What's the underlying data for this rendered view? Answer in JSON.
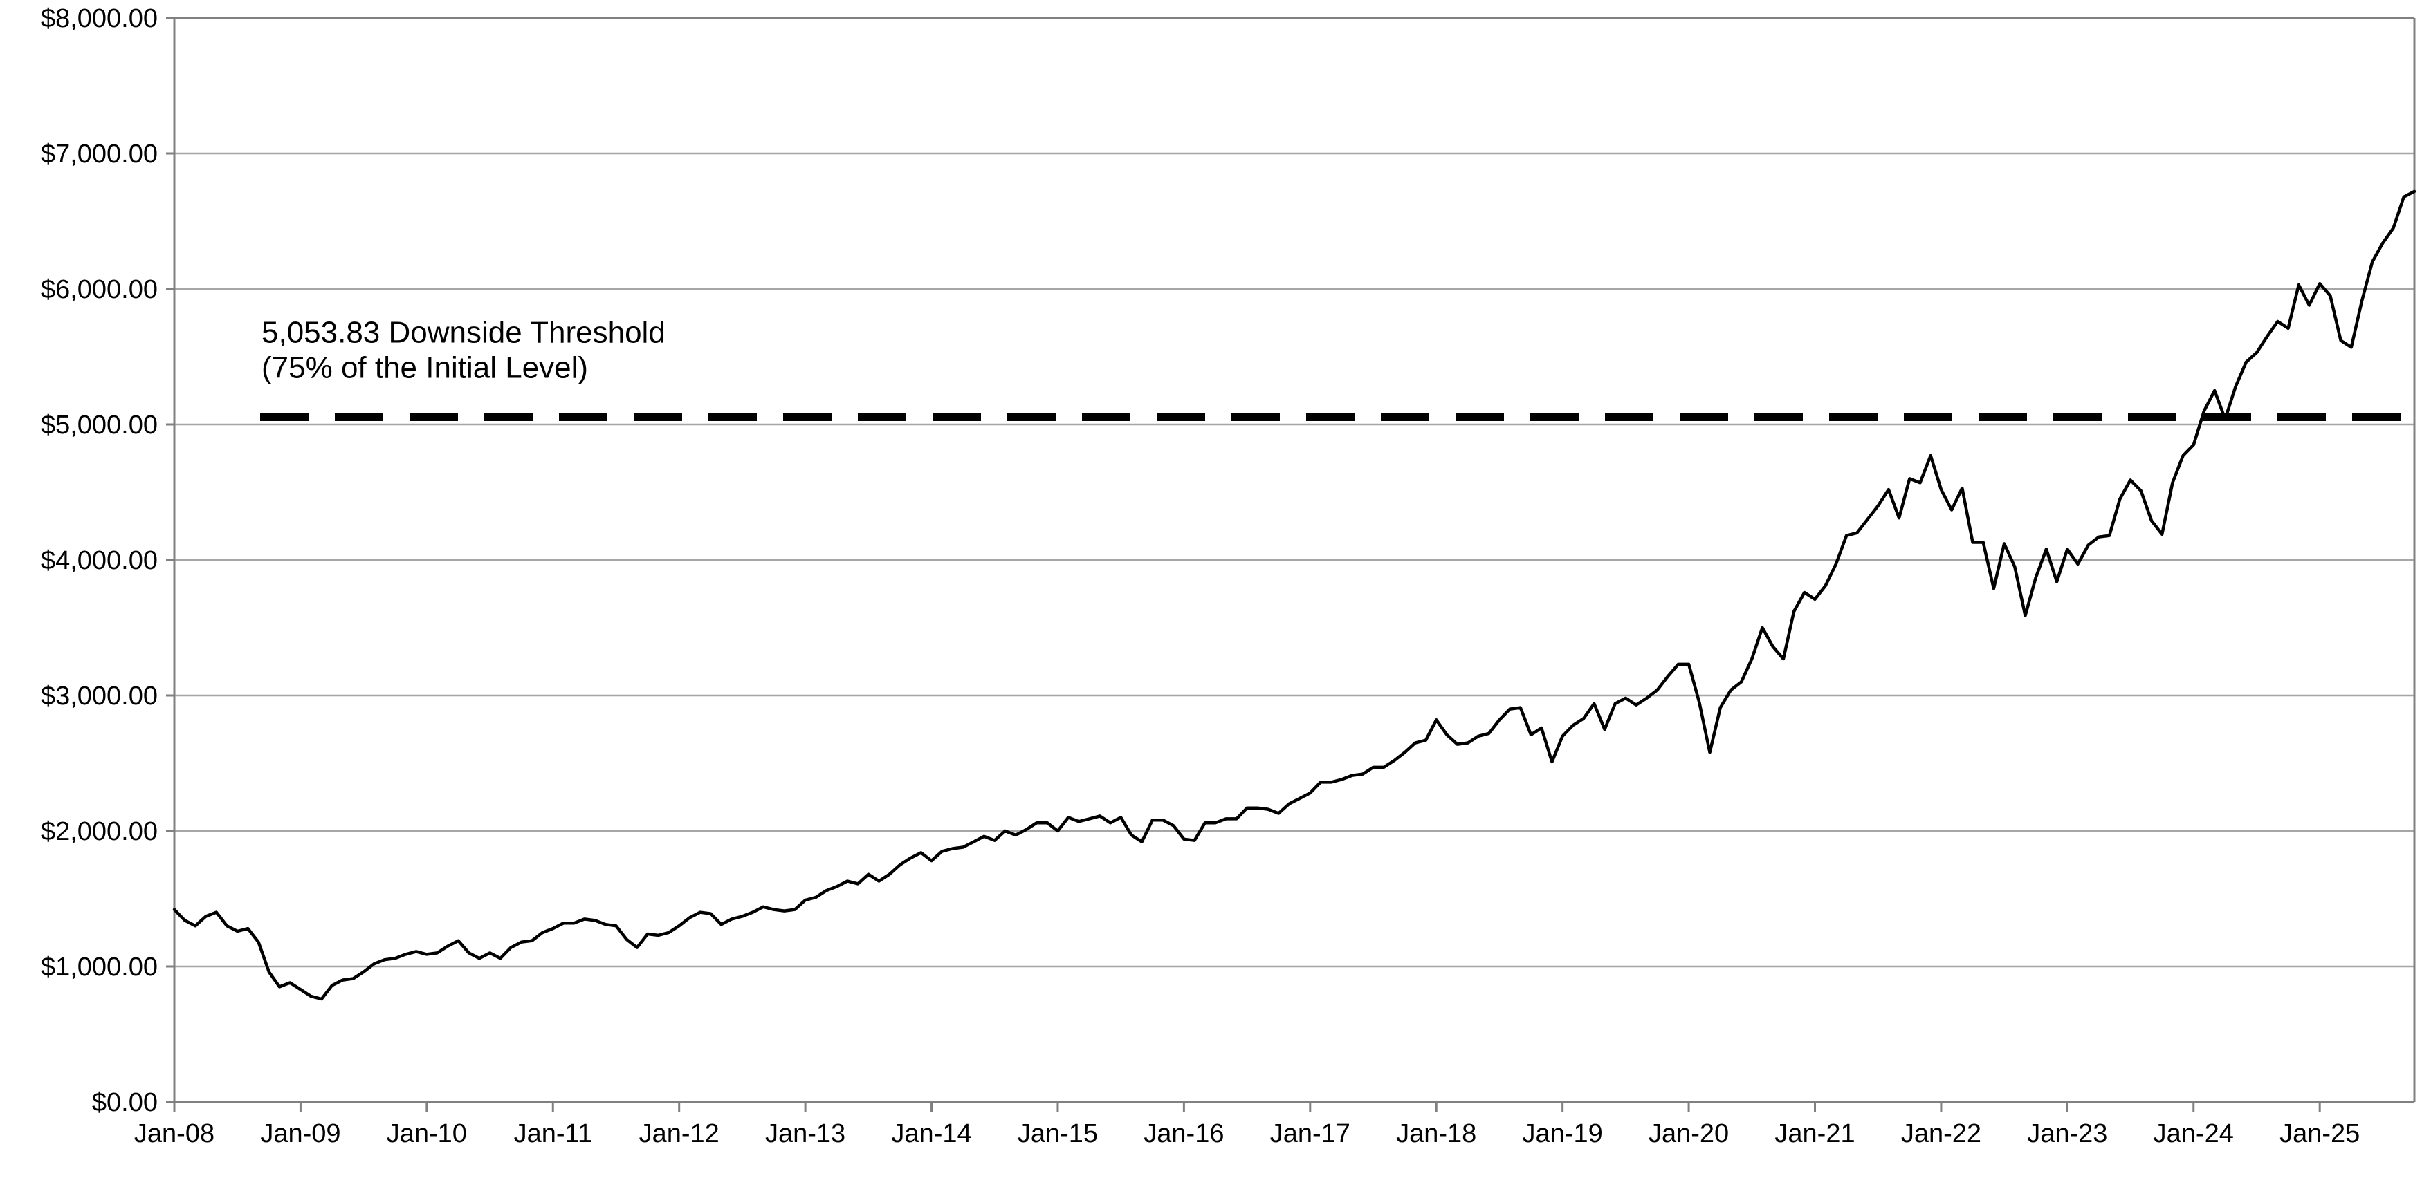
{
  "chart_data": {
    "type": "line",
    "title": "",
    "xlabel": "",
    "ylabel": "",
    "ylim": [
      0,
      8000
    ],
    "xlim": [
      "2008-01",
      "2025-10"
    ],
    "grid": "horizontal",
    "y_ticks": [
      {
        "value": 0,
        "label": "$0.00"
      },
      {
        "value": 1000,
        "label": "$1,000.00"
      },
      {
        "value": 2000,
        "label": "$2,000.00"
      },
      {
        "value": 3000,
        "label": "$3,000.00"
      },
      {
        "value": 4000,
        "label": "$4,000.00"
      },
      {
        "value": 5000,
        "label": "$5,000.00"
      },
      {
        "value": 6000,
        "label": "$6,000.00"
      },
      {
        "value": 7000,
        "label": "$7,000.00"
      },
      {
        "value": 8000,
        "label": "$8,000.00"
      }
    ],
    "x_ticks": [
      {
        "value": "2008-01",
        "label": "Jan-08"
      },
      {
        "value": "2009-01",
        "label": "Jan-09"
      },
      {
        "value": "2010-01",
        "label": "Jan-10"
      },
      {
        "value": "2011-01",
        "label": "Jan-11"
      },
      {
        "value": "2012-01",
        "label": "Jan-12"
      },
      {
        "value": "2013-01",
        "label": "Jan-13"
      },
      {
        "value": "2014-01",
        "label": "Jan-14"
      },
      {
        "value": "2015-01",
        "label": "Jan-15"
      },
      {
        "value": "2016-01",
        "label": "Jan-16"
      },
      {
        "value": "2017-01",
        "label": "Jan-17"
      },
      {
        "value": "2018-01",
        "label": "Jan-18"
      },
      {
        "value": "2019-01",
        "label": "Jan-19"
      },
      {
        "value": "2020-01",
        "label": "Jan-20"
      },
      {
        "value": "2021-01",
        "label": "Jan-21"
      },
      {
        "value": "2022-01",
        "label": "Jan-22"
      },
      {
        "value": "2023-01",
        "label": "Jan-23"
      },
      {
        "value": "2024-01",
        "label": "Jan-24"
      },
      {
        "value": "2025-01",
        "label": "Jan-25"
      }
    ],
    "threshold": {
      "value": 5053.83,
      "label_line1": "5,053.83 Downside Threshold",
      "label_line2": "(75% of the Initial Level)"
    },
    "series": [
      {
        "color": "#000000",
        "x": [
          "2008-01",
          "2008-02",
          "2008-03",
          "2008-04",
          "2008-05",
          "2008-06",
          "2008-07",
          "2008-08",
          "2008-09",
          "2008-10",
          "2008-11",
          "2008-12",
          "2009-01",
          "2009-02",
          "2009-03",
          "2009-04",
          "2009-05",
          "2009-06",
          "2009-07",
          "2009-08",
          "2009-09",
          "2009-10",
          "2009-11",
          "2009-12",
          "2010-01",
          "2010-02",
          "2010-03",
          "2010-04",
          "2010-05",
          "2010-06",
          "2010-07",
          "2010-08",
          "2010-09",
          "2010-10",
          "2010-11",
          "2010-12",
          "2011-01",
          "2011-02",
          "2011-03",
          "2011-04",
          "2011-05",
          "2011-06",
          "2011-07",
          "2011-08",
          "2011-09",
          "2011-10",
          "2011-11",
          "2011-12",
          "2012-01",
          "2012-02",
          "2012-03",
          "2012-04",
          "2012-05",
          "2012-06",
          "2012-07",
          "2012-08",
          "2012-09",
          "2012-10",
          "2012-11",
          "2012-12",
          "2013-01",
          "2013-02",
          "2013-03",
          "2013-04",
          "2013-05",
          "2013-06",
          "2013-07",
          "2013-08",
          "2013-09",
          "2013-10",
          "2013-11",
          "2013-12",
          "2014-01",
          "2014-02",
          "2014-03",
          "2014-04",
          "2014-05",
          "2014-06",
          "2014-07",
          "2014-08",
          "2014-09",
          "2014-10",
          "2014-11",
          "2014-12",
          "2015-01",
          "2015-02",
          "2015-03",
          "2015-04",
          "2015-05",
          "2015-06",
          "2015-07",
          "2015-08",
          "2015-09",
          "2015-10",
          "2015-11",
          "2015-12",
          "2016-01",
          "2016-02",
          "2016-03",
          "2016-04",
          "2016-05",
          "2016-06",
          "2016-07",
          "2016-08",
          "2016-09",
          "2016-10",
          "2016-11",
          "2016-12",
          "2017-01",
          "2017-02",
          "2017-03",
          "2017-04",
          "2017-05",
          "2017-06",
          "2017-07",
          "2017-08",
          "2017-09",
          "2017-10",
          "2017-11",
          "2017-12",
          "2018-01",
          "2018-02",
          "2018-03",
          "2018-04",
          "2018-05",
          "2018-06",
          "2018-07",
          "2018-08",
          "2018-09",
          "2018-10",
          "2018-11",
          "2018-12",
          "2019-01",
          "2019-02",
          "2019-03",
          "2019-04",
          "2019-05",
          "2019-06",
          "2019-07",
          "2019-08",
          "2019-09",
          "2019-10",
          "2019-11",
          "2019-12",
          "2020-01",
          "2020-02",
          "2020-03",
          "2020-04",
          "2020-05",
          "2020-06",
          "2020-07",
          "2020-08",
          "2020-09",
          "2020-10",
          "2020-11",
          "2020-12",
          "2021-01",
          "2021-02",
          "2021-03",
          "2021-04",
          "2021-05",
          "2021-06",
          "2021-07",
          "2021-08",
          "2021-09",
          "2021-10",
          "2021-11",
          "2021-12",
          "2022-01",
          "2022-02",
          "2022-03",
          "2022-04",
          "2022-05",
          "2022-06",
          "2022-07",
          "2022-08",
          "2022-09",
          "2022-10",
          "2022-11",
          "2022-12",
          "2023-01",
          "2023-02",
          "2023-03",
          "2023-04",
          "2023-05",
          "2023-06",
          "2023-07",
          "2023-08",
          "2023-09",
          "2023-10",
          "2023-11",
          "2023-12",
          "2024-01",
          "2024-02",
          "2024-03",
          "2024-04",
          "2024-05",
          "2024-06",
          "2024-07",
          "2024-08",
          "2024-09",
          "2024-10",
          "2024-11",
          "2024-12",
          "2025-01",
          "2025-02",
          "2025-03",
          "2025-04",
          "2025-05",
          "2025-06",
          "2025-07",
          "2025-08",
          "2025-09",
          "2025-10"
        ],
        "values": [
          1420,
          1340,
          1300,
          1370,
          1400,
          1300,
          1260,
          1280,
          1180,
          960,
          850,
          880,
          830,
          780,
          760,
          860,
          900,
          910,
          960,
          1020,
          1050,
          1060,
          1090,
          1110,
          1090,
          1100,
          1150,
          1190,
          1100,
          1060,
          1100,
          1060,
          1140,
          1180,
          1190,
          1250,
          1280,
          1320,
          1320,
          1350,
          1340,
          1310,
          1300,
          1200,
          1140,
          1240,
          1230,
          1250,
          1300,
          1360,
          1400,
          1390,
          1310,
          1350,
          1370,
          1400,
          1440,
          1420,
          1410,
          1420,
          1490,
          1510,
          1560,
          1590,
          1630,
          1610,
          1680,
          1630,
          1680,
          1750,
          1800,
          1840,
          1780,
          1850,
          1870,
          1880,
          1920,
          1960,
          1930,
          2000,
          1970,
          2010,
          2060,
          2060,
          2000,
          2100,
          2070,
          2090,
          2110,
          2060,
          2100,
          1970,
          1920,
          2080,
          2080,
          2040,
          1940,
          1930,
          2060,
          2060,
          2090,
          2090,
          2170,
          2170,
          2160,
          2130,
          2200,
          2240,
          2280,
          2360,
          2360,
          2380,
          2410,
          2420,
          2470,
          2470,
          2520,
          2580,
          2650,
          2670,
          2820,
          2710,
          2640,
          2650,
          2700,
          2720,
          2820,
          2900,
          2910,
          2710,
          2760,
          2510,
          2700,
          2780,
          2830,
          2940,
          2750,
          2940,
          2980,
          2930,
          2980,
          3040,
          3140,
          3230,
          3230,
          2950,
          2580,
          2910,
          3040,
          3100,
          3270,
          3500,
          3360,
          3270,
          3620,
          3760,
          3710,
          3810,
          3970,
          4180,
          4200,
          4300,
          4400,
          4520,
          4310,
          4600,
          4570,
          4770,
          4520,
          4370,
          4530,
          4130,
          4130,
          3790,
          4120,
          3950,
          3590,
          3870,
          4080,
          3840,
          4080,
          3970,
          4110,
          4170,
          4180,
          4450,
          4590,
          4510,
          4290,
          4190,
          4570,
          4770,
          4850,
          5100,
          5250,
          5040,
          5280,
          5460,
          5530,
          5650,
          5760,
          5710,
          6030,
          5880,
          6040,
          5950,
          5620,
          5570,
          5910,
          6200,
          6340,
          6450,
          6680,
          6720
        ]
      }
    ]
  }
}
